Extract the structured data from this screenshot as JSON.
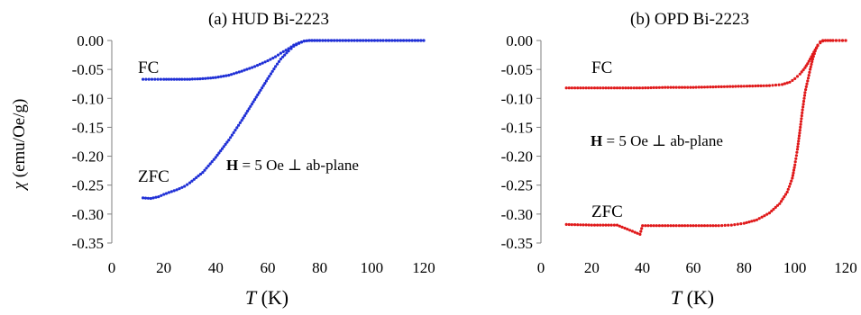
{
  "colors": {
    "blue": "#1f2fd6",
    "red": "#e0191a",
    "axis": "#7f7f7f"
  },
  "chart_data": [
    {
      "type": "scatter",
      "title": "(a) HUD Bi-2223",
      "ylabel": "χ (emu/Oe/g)",
      "xlabel_italic": "T",
      "xlabel_unit": " (K)",
      "xlim": [
        0,
        120
      ],
      "ylim": [
        -0.35,
        0.0
      ],
      "xticks": [
        "0",
        "20",
        "40",
        "60",
        "80",
        "100",
        "120"
      ],
      "yticks": [
        "0.00",
        "-0.05",
        "-0.10",
        "-0.15",
        "-0.20",
        "-0.25",
        "-0.30",
        "-0.35"
      ],
      "annotation_bold": "H",
      "annotation_rest": " = 5 Oe ⊥ ab-plane",
      "series": [
        {
          "name": "FC",
          "color": "#1f2fd6",
          "points": [
            [
              12,
              -0.067
            ],
            [
              20,
              -0.067
            ],
            [
              25,
              -0.067
            ],
            [
              30,
              -0.067
            ],
            [
              35,
              -0.066
            ],
            [
              40,
              -0.064
            ],
            [
              45,
              -0.06
            ],
            [
              50,
              -0.053
            ],
            [
              55,
              -0.045
            ],
            [
              60,
              -0.035
            ],
            [
              63,
              -0.028
            ],
            [
              65,
              -0.022
            ],
            [
              68,
              -0.014
            ],
            [
              70,
              -0.008
            ],
            [
              72,
              -0.004
            ],
            [
              74,
              -0.001
            ],
            [
              76,
              0.0
            ],
            [
              80,
              0.0
            ],
            [
              90,
              0.0
            ],
            [
              100,
              0.0
            ],
            [
              110,
              0.0
            ],
            [
              120,
              0.0
            ]
          ]
        },
        {
          "name": "ZFC",
          "color": "#1f2fd6",
          "points": [
            [
              12,
              -0.272
            ],
            [
              15,
              -0.273
            ],
            [
              18,
              -0.27
            ],
            [
              20,
              -0.266
            ],
            [
              25,
              -0.258
            ],
            [
              28,
              -0.252
            ],
            [
              30,
              -0.246
            ],
            [
              35,
              -0.228
            ],
            [
              40,
              -0.202
            ],
            [
              45,
              -0.172
            ],
            [
              50,
              -0.138
            ],
            [
              55,
              -0.102
            ],
            [
              60,
              -0.066
            ],
            [
              63,
              -0.045
            ],
            [
              65,
              -0.032
            ],
            [
              68,
              -0.018
            ],
            [
              70,
              -0.01
            ],
            [
              72,
              -0.005
            ],
            [
              74,
              -0.001
            ],
            [
              76,
              0.0
            ],
            [
              80,
              0.0
            ],
            [
              90,
              0.0
            ],
            [
              100,
              0.0
            ],
            [
              110,
              0.0
            ],
            [
              120,
              0.0
            ]
          ]
        }
      ]
    },
    {
      "type": "scatter",
      "title": "(b) OPD Bi-2223",
      "xlabel_italic": "T",
      "xlabel_unit": " (K)",
      "xlim": [
        0,
        120
      ],
      "ylim": [
        -0.35,
        0.0
      ],
      "xticks": [
        "0",
        "20",
        "40",
        "60",
        "80",
        "100",
        "120"
      ],
      "yticks": [
        "0.00",
        "-0.05",
        "-0.10",
        "-0.15",
        "-0.20",
        "-0.25",
        "-0.30",
        "-0.35"
      ],
      "annotation_bold": "H",
      "annotation_rest": " = 5 Oe ⊥ ab-plane",
      "series": [
        {
          "name": "FC",
          "color": "#e0191a",
          "points": [
            [
              10,
              -0.082
            ],
            [
              20,
              -0.082
            ],
            [
              30,
              -0.082
            ],
            [
              40,
              -0.082
            ],
            [
              50,
              -0.081
            ],
            [
              60,
              -0.081
            ],
            [
              70,
              -0.08
            ],
            [
              80,
              -0.079
            ],
            [
              90,
              -0.078
            ],
            [
              95,
              -0.076
            ],
            [
              98,
              -0.072
            ],
            [
              100,
              -0.066
            ],
            [
              102,
              -0.058
            ],
            [
              104,
              -0.047
            ],
            [
              105,
              -0.04
            ],
            [
              106,
              -0.032
            ],
            [
              107,
              -0.024
            ],
            [
              108,
              -0.016
            ],
            [
              109,
              -0.009
            ],
            [
              110,
              -0.004
            ],
            [
              111,
              -0.001
            ],
            [
              112,
              0.0
            ],
            [
              115,
              0.0
            ],
            [
              120,
              0.0
            ]
          ]
        },
        {
          "name": "ZFC",
          "color": "#e0191a",
          "points": [
            [
              10,
              -0.318
            ],
            [
              20,
              -0.319
            ],
            [
              30,
              -0.319
            ],
            [
              39,
              -0.335
            ],
            [
              40,
              -0.32
            ],
            [
              50,
              -0.32
            ],
            [
              60,
              -0.32
            ],
            [
              70,
              -0.32
            ],
            [
              75,
              -0.319
            ],
            [
              80,
              -0.316
            ],
            [
              85,
              -0.31
            ],
            [
              90,
              -0.298
            ],
            [
              94,
              -0.282
            ],
            [
              97,
              -0.262
            ],
            [
              99,
              -0.238
            ],
            [
              100,
              -0.215
            ],
            [
              101,
              -0.188
            ],
            [
              102,
              -0.155
            ],
            [
              103,
              -0.12
            ],
            [
              104,
              -0.09
            ],
            [
              105,
              -0.07
            ],
            [
              106,
              -0.05
            ],
            [
              107,
              -0.032
            ],
            [
              108,
              -0.018
            ],
            [
              109,
              -0.008
            ],
            [
              110,
              -0.002
            ],
            [
              111,
              0.0
            ],
            [
              115,
              0.0
            ],
            [
              120,
              0.0
            ]
          ]
        }
      ]
    }
  ]
}
